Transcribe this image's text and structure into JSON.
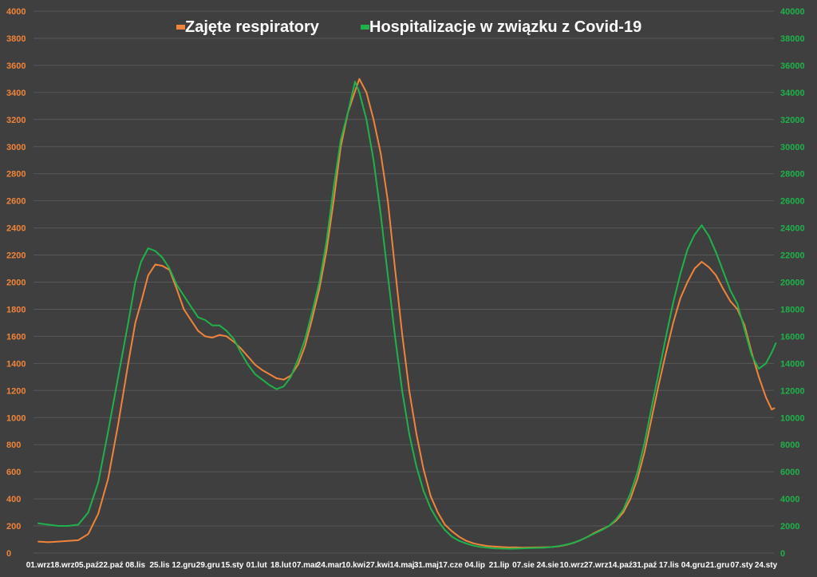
{
  "colors": {
    "background": "#3f3f3f",
    "grid": "#585858",
    "respiratory": "#f0843a",
    "hospital": "#1fb24a",
    "text": "#ffffff"
  },
  "chart_data": {
    "type": "line",
    "legend_position": "top-center",
    "grid": true,
    "y_left": {
      "min": 0,
      "max": 4000,
      "step": 200,
      "ticks": [
        "0",
        "200",
        "400",
        "600",
        "800",
        "1000",
        "1200",
        "1400",
        "1600",
        "1800",
        "2000",
        "2200",
        "2400",
        "2600",
        "2800",
        "3000",
        "3200",
        "3400",
        "3600",
        "3800",
        "4000"
      ]
    },
    "y_right": {
      "min": 0,
      "max": 40000,
      "step": 2000,
      "ticks": [
        "0",
        "2000",
        "4000",
        "6000",
        "8000",
        "10000",
        "12000",
        "14000",
        "16000",
        "18000",
        "20000",
        "22000",
        "24000",
        "26000",
        "28000",
        "30000",
        "32000",
        "34000",
        "36000",
        "38000",
        "40000"
      ]
    },
    "x_start": "2020-09-01",
    "x_labels": [
      "01.wrz",
      "18.wrz",
      "05.paź",
      "22.paź",
      "08.lis",
      "25.lis",
      "12.gru",
      "29.gru",
      "15.sty",
      "01.lut",
      "18.lut",
      "07.mar",
      "24.mar",
      "10.kwi",
      "27.kwi",
      "14.maj",
      "31.maj",
      "17.cze",
      "04.lip",
      "21.lip",
      "07.sie",
      "24.sie",
      "10.wrz",
      "27.wrz",
      "14.paź",
      "31.paź",
      "17.lis",
      "04.gru",
      "21.gru",
      "07.sty",
      "24.sty"
    ],
    "x_label_dates": [
      "2020-09-01",
      "2020-09-18",
      "2020-10-05",
      "2020-10-22",
      "2020-11-08",
      "2020-11-25",
      "2020-12-12",
      "2020-12-29",
      "2021-01-15",
      "2021-02-01",
      "2021-02-18",
      "2021-03-07",
      "2021-03-24",
      "2021-04-10",
      "2021-04-27",
      "2021-05-14",
      "2021-05-31",
      "2021-06-17",
      "2021-07-04",
      "2021-07-21",
      "2021-08-07",
      "2021-08-24",
      "2021-09-10",
      "2021-09-27",
      "2021-10-14",
      "2021-10-31",
      "2021-11-17",
      "2021-12-04",
      "2021-12-21",
      "2022-01-07",
      "2022-01-24"
    ],
    "series": [
      {
        "name": "Zajęte respiratory",
        "axis": "left",
        "color": "#f0843a",
        "points": [
          [
            "2020-09-01",
            85
          ],
          [
            "2020-09-08",
            80
          ],
          [
            "2020-09-15",
            85
          ],
          [
            "2020-09-22",
            90
          ],
          [
            "2020-09-29",
            95
          ],
          [
            "2020-10-06",
            140
          ],
          [
            "2020-10-13",
            290
          ],
          [
            "2020-10-20",
            550
          ],
          [
            "2020-10-27",
            950
          ],
          [
            "2020-11-03",
            1400
          ],
          [
            "2020-11-08",
            1700
          ],
          [
            "2020-11-12",
            1850
          ],
          [
            "2020-11-17",
            2050
          ],
          [
            "2020-11-22",
            2130
          ],
          [
            "2020-11-27",
            2120
          ],
          [
            "2020-12-02",
            2090
          ],
          [
            "2020-12-07",
            1950
          ],
          [
            "2020-12-12",
            1800
          ],
          [
            "2020-12-17",
            1720
          ],
          [
            "2020-12-22",
            1640
          ],
          [
            "2020-12-27",
            1600
          ],
          [
            "2021-01-01",
            1590
          ],
          [
            "2021-01-06",
            1610
          ],
          [
            "2021-01-11",
            1600
          ],
          [
            "2021-01-16",
            1560
          ],
          [
            "2021-01-21",
            1510
          ],
          [
            "2021-01-26",
            1450
          ],
          [
            "2021-01-31",
            1390
          ],
          [
            "2021-02-05",
            1350
          ],
          [
            "2021-02-10",
            1320
          ],
          [
            "2021-02-15",
            1290
          ],
          [
            "2021-02-20",
            1280
          ],
          [
            "2021-02-25",
            1310
          ],
          [
            "2021-03-02",
            1390
          ],
          [
            "2021-03-07",
            1530
          ],
          [
            "2021-03-12",
            1730
          ],
          [
            "2021-03-17",
            1950
          ],
          [
            "2021-03-22",
            2230
          ],
          [
            "2021-03-27",
            2600
          ],
          [
            "2021-04-01",
            3000
          ],
          [
            "2021-04-06",
            3250
          ],
          [
            "2021-04-11",
            3410
          ],
          [
            "2021-04-14",
            3500
          ],
          [
            "2021-04-19",
            3400
          ],
          [
            "2021-04-24",
            3200
          ],
          [
            "2021-04-29",
            2950
          ],
          [
            "2021-05-04",
            2600
          ],
          [
            "2021-05-09",
            2100
          ],
          [
            "2021-05-14",
            1620
          ],
          [
            "2021-05-19",
            1200
          ],
          [
            "2021-05-24",
            880
          ],
          [
            "2021-05-29",
            620
          ],
          [
            "2021-06-03",
            420
          ],
          [
            "2021-06-08",
            300
          ],
          [
            "2021-06-13",
            210
          ],
          [
            "2021-06-18",
            160
          ],
          [
            "2021-06-23",
            120
          ],
          [
            "2021-06-28",
            90
          ],
          [
            "2021-07-03",
            72
          ],
          [
            "2021-07-08",
            60
          ],
          [
            "2021-07-13",
            52
          ],
          [
            "2021-07-18",
            48
          ],
          [
            "2021-07-23",
            44
          ],
          [
            "2021-07-28",
            42
          ],
          [
            "2021-08-02",
            42
          ],
          [
            "2021-08-07",
            40
          ],
          [
            "2021-08-12",
            41
          ],
          [
            "2021-08-17",
            42
          ],
          [
            "2021-08-22",
            43
          ],
          [
            "2021-08-27",
            45
          ],
          [
            "2021-09-01",
            50
          ],
          [
            "2021-09-06",
            60
          ],
          [
            "2021-09-11",
            75
          ],
          [
            "2021-09-16",
            95
          ],
          [
            "2021-09-21",
            120
          ],
          [
            "2021-09-26",
            150
          ],
          [
            "2021-10-01",
            175
          ],
          [
            "2021-10-06",
            200
          ],
          [
            "2021-10-11",
            240
          ],
          [
            "2021-10-16",
            300
          ],
          [
            "2021-10-21",
            400
          ],
          [
            "2021-10-26",
            550
          ],
          [
            "2021-10-31",
            750
          ],
          [
            "2021-11-05",
            1000
          ],
          [
            "2021-11-10",
            1250
          ],
          [
            "2021-11-15",
            1480
          ],
          [
            "2021-11-20",
            1700
          ],
          [
            "2021-11-25",
            1880
          ],
          [
            "2021-11-30",
            2000
          ],
          [
            "2021-12-05",
            2100
          ],
          [
            "2021-12-10",
            2150
          ],
          [
            "2021-12-15",
            2110
          ],
          [
            "2021-12-20",
            2050
          ],
          [
            "2021-12-25",
            1950
          ],
          [
            "2021-12-30",
            1860
          ],
          [
            "2022-01-04",
            1800
          ],
          [
            "2022-01-09",
            1680
          ],
          [
            "2022-01-14",
            1480
          ],
          [
            "2022-01-19",
            1300
          ],
          [
            "2022-01-24",
            1150
          ],
          [
            "2022-01-28",
            1060
          ],
          [
            "2022-01-30",
            1070
          ]
        ]
      },
      {
        "name": "Hospitalizacje w związku z Covid-19",
        "axis": "right",
        "color": "#1fb24a",
        "points": [
          [
            "2020-09-01",
            2200
          ],
          [
            "2020-09-08",
            2100
          ],
          [
            "2020-09-15",
            2000
          ],
          [
            "2020-09-22",
            2000
          ],
          [
            "2020-09-29",
            2100
          ],
          [
            "2020-10-06",
            3000
          ],
          [
            "2020-10-13",
            5200
          ],
          [
            "2020-10-20",
            9000
          ],
          [
            "2020-10-27",
            13000
          ],
          [
            "2020-11-03",
            17000
          ],
          [
            "2020-11-08",
            20000
          ],
          [
            "2020-11-12",
            21500
          ],
          [
            "2020-11-17",
            22500
          ],
          [
            "2020-11-22",
            22300
          ],
          [
            "2020-11-27",
            21800
          ],
          [
            "2020-12-02",
            21000
          ],
          [
            "2020-12-07",
            19800
          ],
          [
            "2020-12-12",
            19000
          ],
          [
            "2020-12-17",
            18200
          ],
          [
            "2020-12-22",
            17400
          ],
          [
            "2020-12-27",
            17200
          ],
          [
            "2021-01-01",
            16800
          ],
          [
            "2021-01-06",
            16800
          ],
          [
            "2021-01-11",
            16400
          ],
          [
            "2021-01-16",
            15800
          ],
          [
            "2021-01-21",
            14800
          ],
          [
            "2021-01-26",
            13900
          ],
          [
            "2021-01-31",
            13200
          ],
          [
            "2021-02-05",
            12800
          ],
          [
            "2021-02-10",
            12400
          ],
          [
            "2021-02-15",
            12100
          ],
          [
            "2021-02-20",
            12300
          ],
          [
            "2021-02-25",
            13000
          ],
          [
            "2021-03-02",
            14300
          ],
          [
            "2021-03-07",
            15800
          ],
          [
            "2021-03-12",
            17800
          ],
          [
            "2021-03-17",
            20000
          ],
          [
            "2021-03-22",
            23000
          ],
          [
            "2021-03-27",
            27000
          ],
          [
            "2021-04-01",
            30500
          ],
          [
            "2021-04-06",
            32500
          ],
          [
            "2021-04-11",
            34800
          ],
          [
            "2021-04-14",
            34000
          ],
          [
            "2021-04-19",
            32000
          ],
          [
            "2021-04-24",
            29000
          ],
          [
            "2021-04-29",
            25000
          ],
          [
            "2021-05-04",
            20500
          ],
          [
            "2021-05-09",
            16000
          ],
          [
            "2021-05-14",
            12000
          ],
          [
            "2021-05-19",
            8800
          ],
          [
            "2021-05-24",
            6400
          ],
          [
            "2021-05-29",
            4600
          ],
          [
            "2021-06-03",
            3300
          ],
          [
            "2021-06-08",
            2400
          ],
          [
            "2021-06-13",
            1700
          ],
          [
            "2021-06-18",
            1200
          ],
          [
            "2021-06-23",
            900
          ],
          [
            "2021-06-28",
            700
          ],
          [
            "2021-07-03",
            550
          ],
          [
            "2021-07-08",
            450
          ],
          [
            "2021-07-13",
            400
          ],
          [
            "2021-07-18",
            350
          ],
          [
            "2021-07-23",
            330
          ],
          [
            "2021-07-28",
            320
          ],
          [
            "2021-08-02",
            330
          ],
          [
            "2021-08-07",
            350
          ],
          [
            "2021-08-12",
            370
          ],
          [
            "2021-08-17",
            380
          ],
          [
            "2021-08-22",
            400
          ],
          [
            "2021-08-27",
            450
          ],
          [
            "2021-09-01",
            520
          ],
          [
            "2021-09-06",
            620
          ],
          [
            "2021-09-11",
            760
          ],
          [
            "2021-09-16",
            950
          ],
          [
            "2021-09-21",
            1200
          ],
          [
            "2021-09-26",
            1450
          ],
          [
            "2021-10-01",
            1700
          ],
          [
            "2021-10-06",
            2000
          ],
          [
            "2021-10-11",
            2500
          ],
          [
            "2021-10-16",
            3200
          ],
          [
            "2021-10-21",
            4400
          ],
          [
            "2021-10-26",
            6000
          ],
          [
            "2021-10-31",
            8200
          ],
          [
            "2021-11-05",
            10800
          ],
          [
            "2021-11-10",
            13400
          ],
          [
            "2021-11-15",
            16000
          ],
          [
            "2021-11-20",
            18500
          ],
          [
            "2021-11-25",
            20600
          ],
          [
            "2021-11-30",
            22400
          ],
          [
            "2021-12-05",
            23500
          ],
          [
            "2021-12-10",
            24200
          ],
          [
            "2021-12-15",
            23400
          ],
          [
            "2021-12-20",
            22200
          ],
          [
            "2021-12-25",
            20800
          ],
          [
            "2021-12-30",
            19400
          ],
          [
            "2022-01-04",
            18400
          ],
          [
            "2022-01-09",
            16500
          ],
          [
            "2022-01-14",
            14600
          ],
          [
            "2022-01-19",
            13600
          ],
          [
            "2022-01-24",
            14000
          ],
          [
            "2022-01-28",
            14800
          ],
          [
            "2022-01-31",
            15500
          ]
        ]
      }
    ]
  }
}
